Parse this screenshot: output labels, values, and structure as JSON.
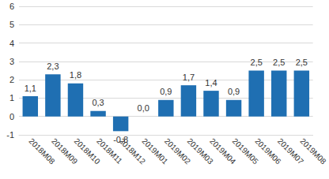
{
  "chart_data": {
    "type": "bar",
    "categories": [
      "2018M08",
      "2018M09",
      "2018M10",
      "2018M11",
      "2018M12",
      "2019M01",
      "2019M02",
      "2019M03",
      "2019M04",
      "2019M05",
      "2019M06",
      "2019M07",
      "2019M08"
    ],
    "values": [
      1.1,
      2.3,
      1.8,
      0.3,
      -0.8,
      0.0,
      0.9,
      1.7,
      1.4,
      0.9,
      2.5,
      2.5,
      2.5
    ],
    "value_labels": [
      "1,1",
      "2,3",
      "1,8",
      "0,3",
      "-0,8",
      "0,0",
      "0,9",
      "1,7",
      "1,4",
      "0,9",
      "2,5",
      "2,5",
      "2,5"
    ],
    "color": "#1f6fb2",
    "ylim": [
      -1,
      6
    ],
    "yticks": [
      -1,
      0,
      1,
      2,
      3,
      4,
      5,
      6
    ],
    "grid": true,
    "data_labels": true
  }
}
